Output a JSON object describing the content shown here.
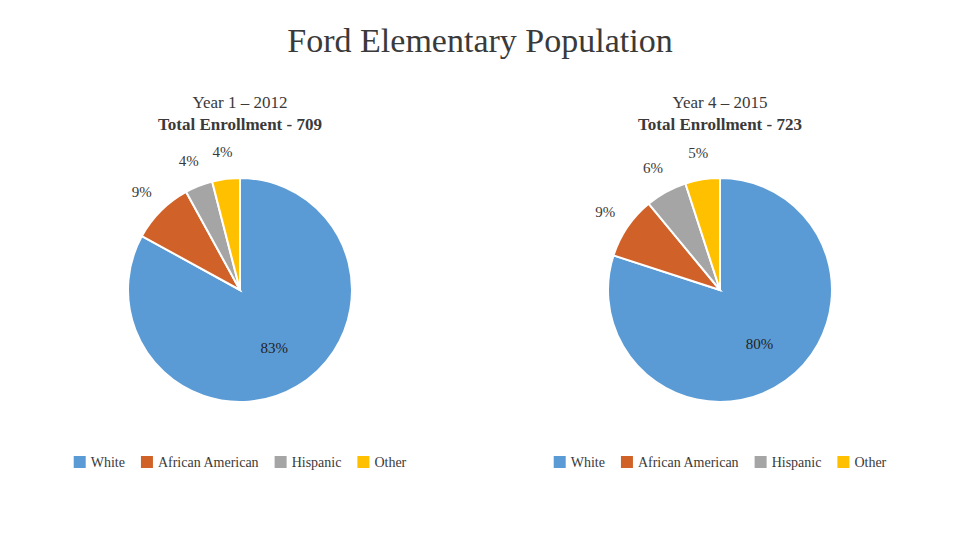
{
  "title": "Ford Elementary Population",
  "chart_data": [
    {
      "type": "pie",
      "title": "Year 1 – 2012",
      "subtitle": "Total Enrollment - 709",
      "categories": [
        "White",
        "African American",
        "Hispanic",
        "Other"
      ],
      "values": [
        83,
        9,
        4,
        4
      ],
      "value_labels": [
        "83%",
        "9%",
        "4%",
        "4%"
      ],
      "colors": [
        "#5b9bd5",
        "#d06128",
        "#a5a5a5",
        "#ffc000"
      ],
      "data_labels": true,
      "legend": "bottom"
    },
    {
      "type": "pie",
      "title": "Year 4 – 2015",
      "subtitle": "Total Enrollment - 723",
      "categories": [
        "White",
        "African American",
        "Hispanic",
        "Other"
      ],
      "values": [
        80,
        9,
        6,
        5
      ],
      "value_labels": [
        "80%",
        "9%",
        "6%",
        "5%"
      ],
      "colors": [
        "#5b9bd5",
        "#d06128",
        "#a5a5a5",
        "#ffc000"
      ],
      "data_labels": true,
      "legend": "bottom"
    }
  ]
}
